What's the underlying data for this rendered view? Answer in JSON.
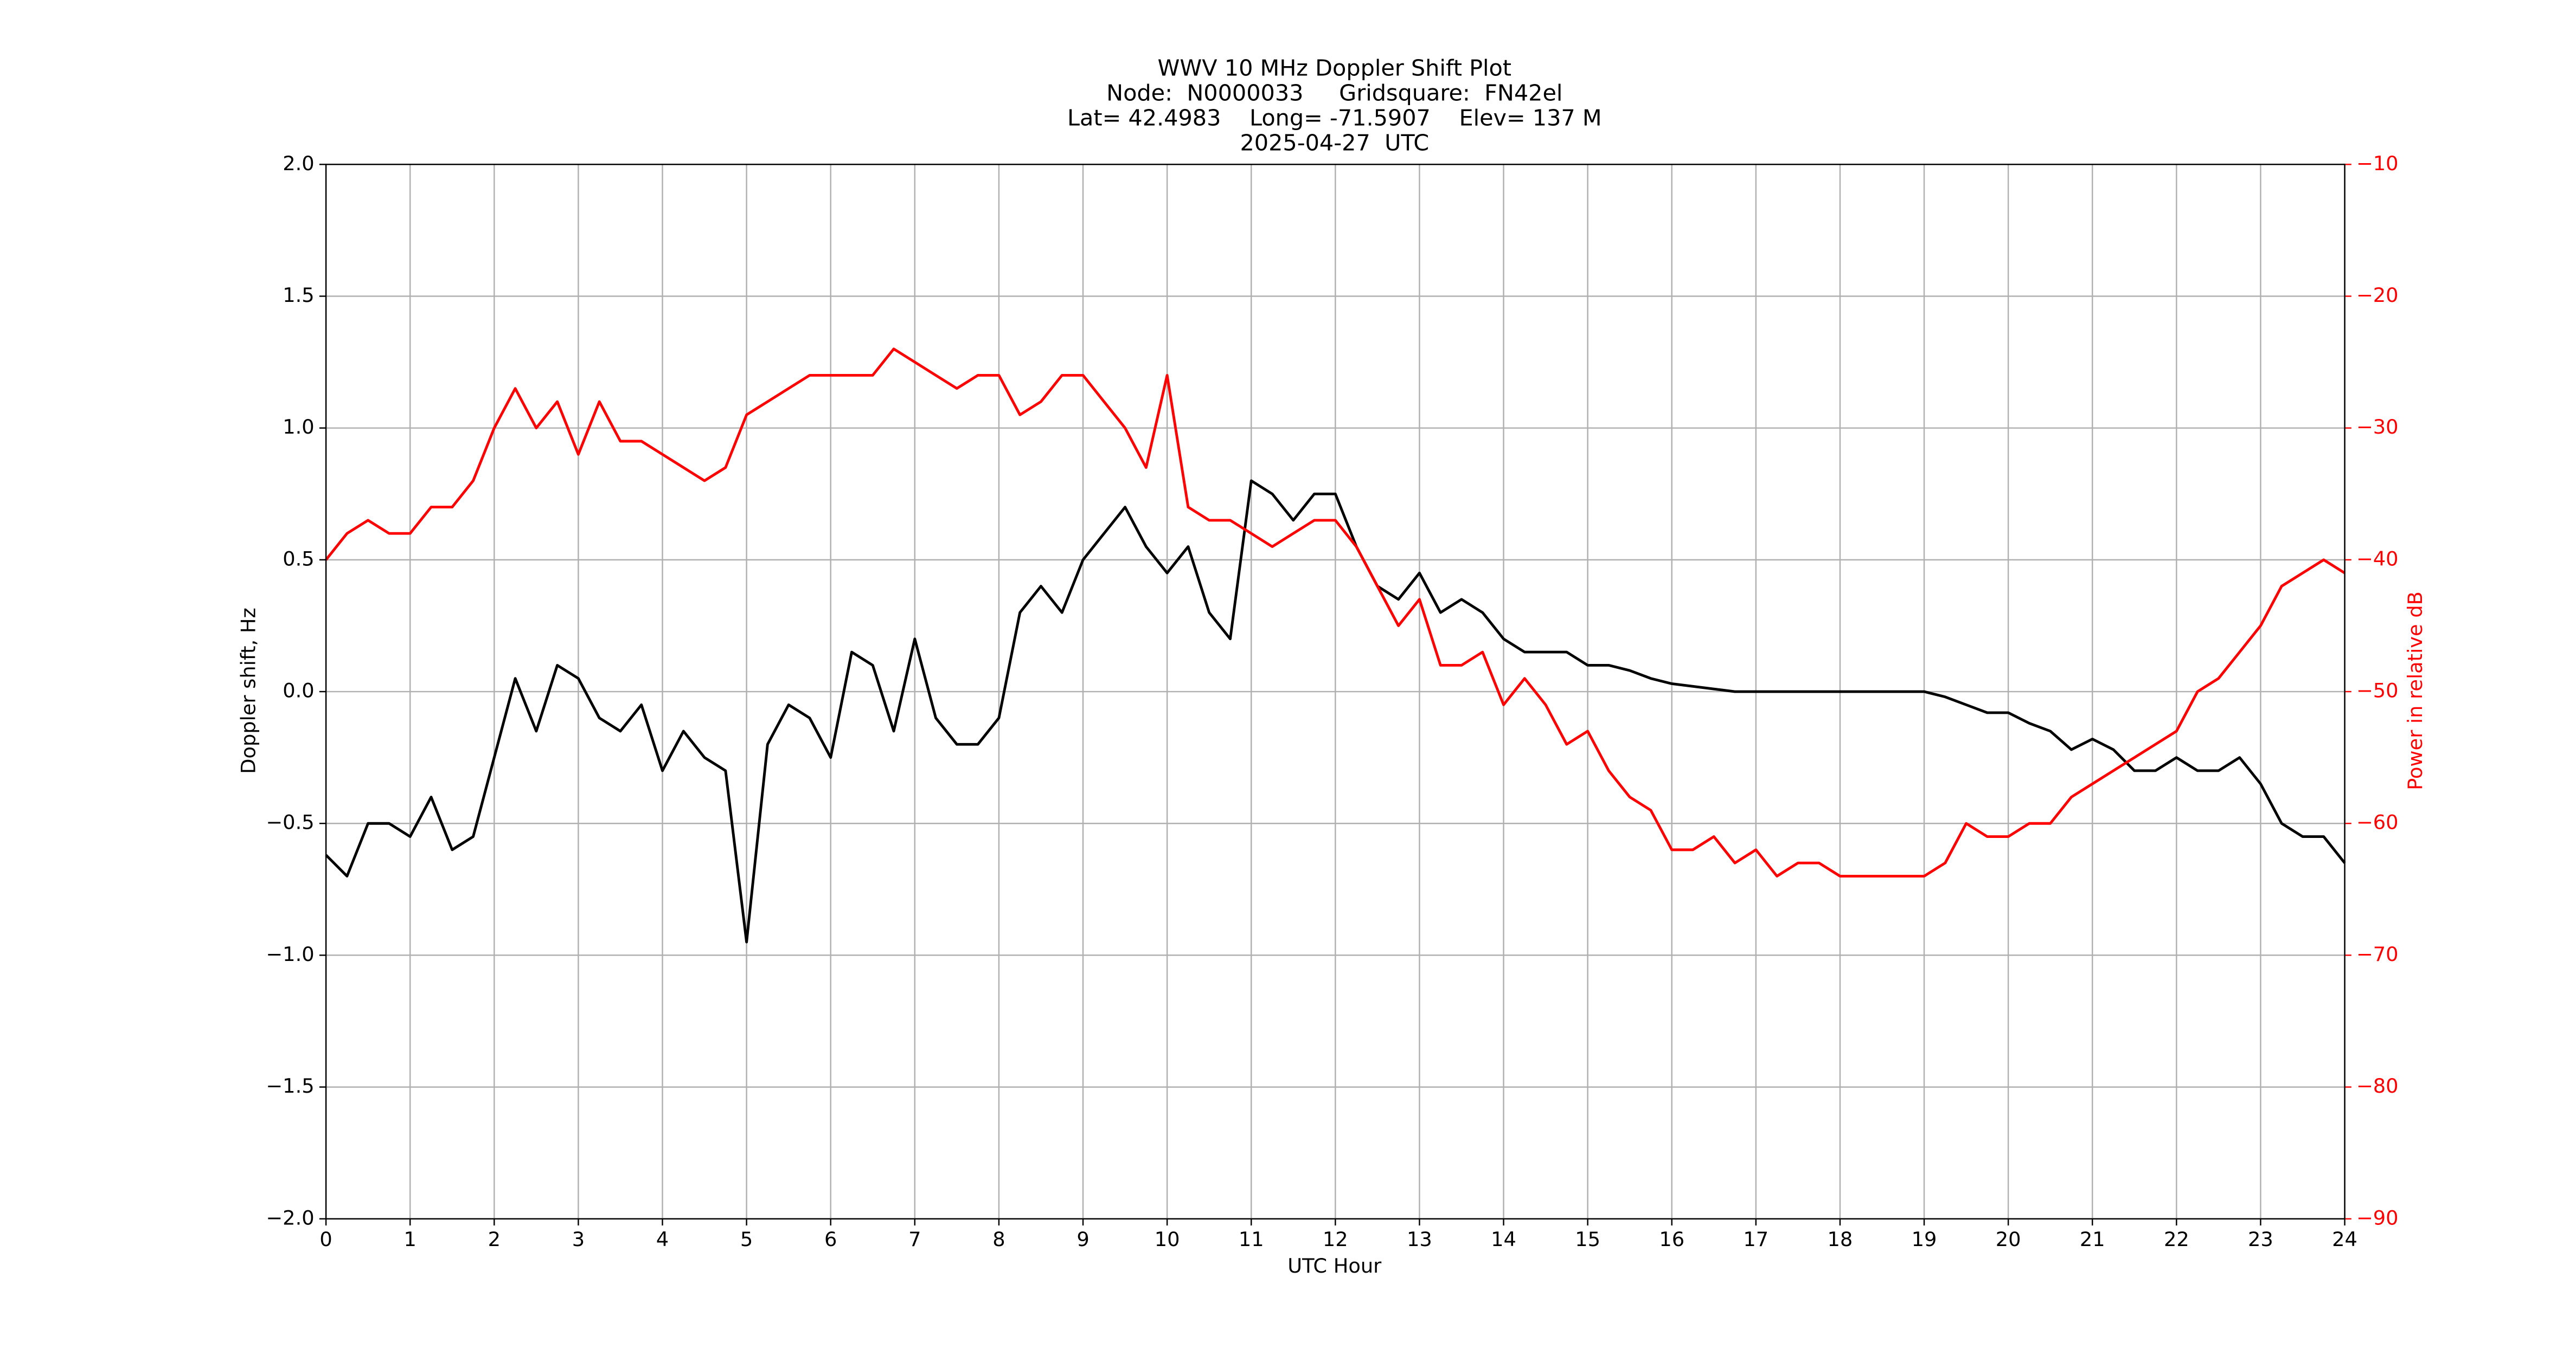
{
  "chart_data": {
    "type": "line",
    "title_lines": [
      "WWV 10 MHz Doppler Shift Plot",
      "Node:  N0000033     Gridsquare:  FN42el",
      "Lat= 42.4983    Long= -71.5907    Elev= 137 M",
      "2025-04-27  UTC"
    ],
    "x_label": "UTC Hour",
    "y_label": "Doppler shift, Hz",
    "y2_label": "Power in relative dB",
    "x": [
      0,
      0.25,
      0.5,
      0.75,
      1,
      1.25,
      1.5,
      1.75,
      2,
      2.25,
      2.5,
      2.75,
      3,
      3.25,
      3.5,
      3.75,
      4,
      4.25,
      4.5,
      4.75,
      5,
      5.25,
      5.5,
      5.75,
      6,
      6.25,
      6.5,
      6.75,
      7,
      7.25,
      7.5,
      7.75,
      8,
      8.25,
      8.5,
      8.75,
      9,
      9.25,
      9.5,
      9.75,
      10,
      10.25,
      10.5,
      10.75,
      11,
      11.25,
      11.5,
      11.75,
      12,
      12.25,
      12.5,
      12.75,
      13,
      13.25,
      13.5,
      13.75,
      14,
      14.25,
      14.5,
      14.75,
      15,
      15.25,
      15.5,
      15.75,
      16,
      16.25,
      16.5,
      16.75,
      17,
      17.25,
      17.5,
      17.75,
      18,
      18.25,
      18.5,
      18.75,
      19,
      19.25,
      19.5,
      19.75,
      20,
      20.25,
      20.5,
      20.75,
      21,
      21.25,
      21.5,
      21.75,
      22,
      22.25,
      22.5,
      22.75,
      23,
      23.25,
      23.5,
      23.75,
      24
    ],
    "series": [
      {
        "color": "#000000",
        "axis": "y",
        "values": [
          -0.62,
          -0.7,
          -0.5,
          -0.5,
          -0.55,
          -0.4,
          -0.6,
          -0.55,
          -0.25,
          0.05,
          -0.15,
          0.1,
          0.05,
          -0.1,
          -0.15,
          -0.05,
          -0.3,
          -0.15,
          -0.25,
          -0.3,
          -0.95,
          -0.2,
          -0.05,
          -0.1,
          -0.25,
          0.15,
          0.1,
          -0.15,
          0.2,
          -0.1,
          -0.2,
          -0.2,
          -0.1,
          0.3,
          0.4,
          0.3,
          0.5,
          0.6,
          0.7,
          0.55,
          0.45,
          0.55,
          0.3,
          0.2,
          0.8,
          0.75,
          0.65,
          0.75,
          0.75,
          0.55,
          0.4,
          0.35,
          0.45,
          0.3,
          0.35,
          0.3,
          0.2,
          0.15,
          0.15,
          0.15,
          0.1,
          0.1,
          0.08,
          0.05,
          0.03,
          0.02,
          0.01,
          0.0,
          0.0,
          0.0,
          0.0,
          0.0,
          0.0,
          0.0,
          0.0,
          0.0,
          0.0,
          -0.02,
          -0.05,
          -0.08,
          -0.08,
          -0.12,
          -0.15,
          -0.22,
          -0.18,
          -0.22,
          -0.3,
          -0.3,
          -0.25,
          -0.3,
          -0.3,
          -0.25,
          -0.35,
          -0.5,
          -0.55,
          -0.55,
          -0.65
        ]
      },
      {
        "color": "#ff0000",
        "axis": "y2",
        "values": [
          -40,
          -38,
          -37,
          -38,
          -38,
          -36,
          -36,
          -34,
          -30,
          -27,
          -30,
          -28,
          -32,
          -28,
          -31,
          -31,
          -32,
          -33,
          -34,
          -33,
          -29,
          -28,
          -27,
          -26,
          -26,
          -26,
          -26,
          -24,
          -25,
          -26,
          -27,
          -26,
          -26,
          -29,
          -28,
          -26,
          -26,
          -28,
          -30,
          -33,
          -26,
          -36,
          -37,
          -37,
          -38,
          -39,
          -38,
          -37,
          -37,
          -39,
          -42,
          -45,
          -43,
          -48,
          -48,
          -47,
          -51,
          -49,
          -51,
          -54,
          -53,
          -56,
          -58,
          -59,
          -62,
          -62,
          -61,
          -63,
          -62,
          -64,
          -63,
          -63,
          -64,
          -64,
          -64,
          -64,
          -64,
          -63,
          -60,
          -61,
          -61,
          -60,
          -60,
          -58,
          -57,
          -56,
          -55,
          -54,
          -53,
          -50,
          -49,
          -47,
          -45,
          -42,
          -41,
          -40,
          -41
        ]
      }
    ],
    "xlim": [
      0,
      24
    ],
    "xticks": [
      0,
      1,
      2,
      3,
      4,
      5,
      6,
      7,
      8,
      9,
      10,
      11,
      12,
      13,
      14,
      15,
      16,
      17,
      18,
      19,
      20,
      21,
      22,
      23,
      24
    ],
    "ylim": [
      -2.0,
      2.0
    ],
    "yticks": [
      {
        "value": -2.0,
        "label": "−2.0"
      },
      {
        "value": -1.5,
        "label": "−1.5"
      },
      {
        "value": -1.0,
        "label": "−1.0"
      },
      {
        "value": -0.5,
        "label": "−0.5"
      },
      {
        "value": 0.0,
        "label": "0.0"
      },
      {
        "value": 0.5,
        "label": "0.5"
      },
      {
        "value": 1.0,
        "label": "1.0"
      },
      {
        "value": 1.5,
        "label": "1.5"
      },
      {
        "value": 2.0,
        "label": "2.0"
      }
    ],
    "y2lim": [
      -90,
      -10
    ],
    "y2ticks": [
      {
        "value": -90,
        "label": "−90"
      },
      {
        "value": -80,
        "label": "−80"
      },
      {
        "value": -70,
        "label": "−70"
      },
      {
        "value": -60,
        "label": "−60"
      },
      {
        "value": -50,
        "label": "−50"
      },
      {
        "value": -40,
        "label": "−40"
      },
      {
        "value": -30,
        "label": "−30"
      },
      {
        "value": -20,
        "label": "−20"
      },
      {
        "value": -10,
        "label": "−10"
      }
    ],
    "y2_color": "#ff0000",
    "grid": true
  }
}
